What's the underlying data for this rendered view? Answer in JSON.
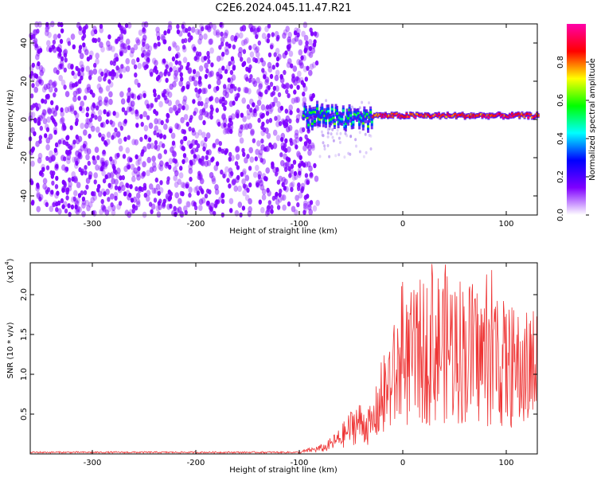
{
  "title": "C2E6.2024.045.11.47.R21",
  "colors": {
    "snr_line": "#ee3333",
    "axis": "#000000",
    "spec_base": "#7700ee"
  },
  "chart_data": [
    {
      "type": "heatmap",
      "name": "spectrogram",
      "xlabel": "Height of straight line (km)",
      "ylabel": "Frequency (Hz)",
      "xlim": [
        -360,
        130
      ],
      "ylim": [
        -50,
        50
      ],
      "xticks": [
        -300,
        -200,
        -100,
        0,
        100
      ],
      "yticks": [
        -40,
        -20,
        0,
        20,
        40
      ],
      "noise_region_x": [
        -360,
        -82
      ],
      "signal_center_freq_hz": 2,
      "colorbar": {
        "label": "Normalized spectral amplitude",
        "range": [
          0,
          1
        ],
        "ticks": [
          "0.0",
          "0.2",
          "0.4",
          "0.6",
          "0.8"
        ],
        "tick_values": [
          0,
          0.2,
          0.4,
          0.6,
          0.8
        ],
        "colormap": [
          "#ffffff",
          "#7f00ff",
          "#0000ff",
          "#00ffff",
          "#00ff00",
          "#ffff00",
          "#ff0000",
          "#ff00aa"
        ]
      }
    },
    {
      "type": "line",
      "name": "snr",
      "xlabel": "Height of straight line (km)",
      "ylabel": "SNR (10 * v/v)",
      "y_multiplier": "(x10",
      "y_multiplier_exp": "4",
      "xlim": [
        -360,
        130
      ],
      "ylim": [
        0,
        2.4
      ],
      "xticks": [
        -300,
        -200,
        -100,
        0,
        100
      ],
      "yticks": [
        "0.5",
        "1.0",
        "1.5",
        "2.0"
      ],
      "ytick_values": [
        0.5,
        1.0,
        1.5,
        2.0
      ],
      "anchors": [
        [
          -360,
          0.02
        ],
        [
          -100,
          0.02
        ],
        [
          -92,
          0.04
        ],
        [
          -75,
          0.08
        ],
        [
          -60,
          0.2
        ],
        [
          -45,
          0.4
        ],
        [
          -30,
          0.35
        ],
        [
          -15,
          0.9
        ],
        [
          0,
          1.2
        ],
        [
          20,
          1.4
        ],
        [
          40,
          1.5
        ],
        [
          60,
          1.4
        ],
        [
          80,
          1.3
        ],
        [
          100,
          1.2
        ],
        [
          115,
          1.1
        ],
        [
          130,
          1.2
        ]
      ]
    }
  ]
}
